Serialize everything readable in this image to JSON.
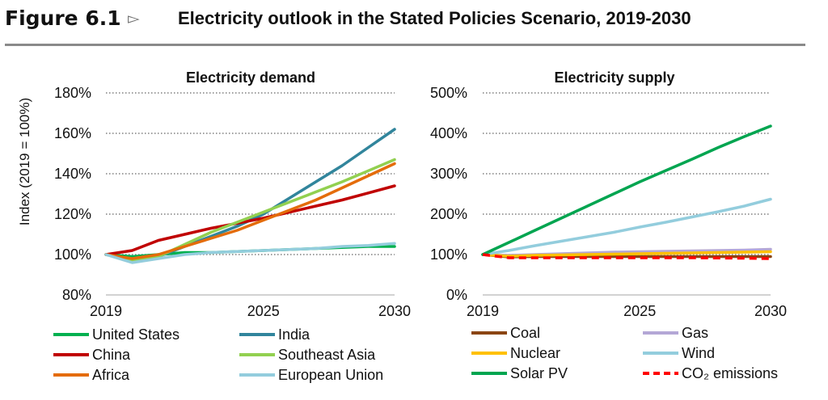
{
  "figure": {
    "number": "Figure 6.1",
    "arrow": "▻",
    "title": "Electricity outlook in the Stated Policies Scenario, 2019-2030"
  },
  "chart_data": [
    {
      "type": "line",
      "title": "Electricity demand",
      "ylabel": "Index (2019 = 100%)",
      "xlabel": "",
      "x": [
        2019,
        2020,
        2021,
        2022,
        2023,
        2024,
        2025,
        2026,
        2027,
        2028,
        2029,
        2030
      ],
      "xticks": [
        2019,
        2025,
        2030
      ],
      "ylim": [
        0.8,
        1.8
      ],
      "yticks": [
        0.8,
        1.0,
        1.2,
        1.4,
        1.6,
        1.8
      ],
      "ytick_labels": [
        "80%",
        "100%",
        "120%",
        "140%",
        "160%",
        "180%"
      ],
      "grid": "dotted horizontal",
      "series": [
        {
          "name": "United States",
          "color": "#00b050",
          "values": [
            1.0,
            0.99,
            1.0,
            1.01,
            1.01,
            1.015,
            1.02,
            1.025,
            1.03,
            1.035,
            1.04,
            1.04
          ]
        },
        {
          "name": "India",
          "color": "#31859c",
          "values": [
            1.0,
            0.97,
            0.99,
            1.04,
            1.09,
            1.14,
            1.2,
            1.28,
            1.36,
            1.44,
            1.53,
            1.62
          ]
        },
        {
          "name": "China",
          "color": "#c00000",
          "values": [
            1.0,
            1.02,
            1.07,
            1.1,
            1.13,
            1.155,
            1.18,
            1.21,
            1.24,
            1.27,
            1.305,
            1.34
          ]
        },
        {
          "name": "Southeast Asia",
          "color": "#92d050",
          "values": [
            1.0,
            0.97,
            0.99,
            1.05,
            1.11,
            1.16,
            1.21,
            1.26,
            1.31,
            1.36,
            1.415,
            1.47
          ]
        },
        {
          "name": "Africa",
          "color": "#e46c0a",
          "values": [
            1.0,
            0.98,
            1.0,
            1.04,
            1.08,
            1.12,
            1.17,
            1.22,
            1.27,
            1.33,
            1.39,
            1.45
          ]
        },
        {
          "name": "European Union",
          "color": "#93cddd",
          "values": [
            1.0,
            0.96,
            0.98,
            1.0,
            1.01,
            1.015,
            1.02,
            1.025,
            1.03,
            1.04,
            1.045,
            1.055
          ]
        }
      ]
    },
    {
      "type": "line",
      "title": "Electricity supply",
      "xlabel": "",
      "ylabel": "",
      "x": [
        2019,
        2020,
        2021,
        2022,
        2023,
        2024,
        2025,
        2026,
        2027,
        2028,
        2029,
        2030
      ],
      "xticks": [
        2019,
        2025,
        2030
      ],
      "ylim": [
        0,
        5
      ],
      "yticks": [
        0,
        1,
        2,
        3,
        4,
        5
      ],
      "ytick_labels": [
        "0%",
        "100%",
        "200%",
        "300%",
        "400%",
        "500%"
      ],
      "grid": "dotted horizontal",
      "series": [
        {
          "name": "Coal",
          "color": "#8b4513",
          "dash": "solid",
          "values": [
            1.0,
            0.94,
            0.95,
            0.95,
            0.95,
            0.95,
            0.95,
            0.95,
            0.95,
            0.95,
            0.95,
            0.95
          ]
        },
        {
          "name": "Gas",
          "color": "#b4a7d6",
          "dash": "solid",
          "values": [
            1.0,
            0.98,
            1.0,
            1.02,
            1.04,
            1.06,
            1.07,
            1.08,
            1.09,
            1.1,
            1.11,
            1.13
          ]
        },
        {
          "name": "Nuclear",
          "color": "#ffc000",
          "dash": "solid",
          "values": [
            1.0,
            0.96,
            0.98,
            0.99,
            1.0,
            1.01,
            1.02,
            1.03,
            1.04,
            1.05,
            1.06,
            1.07
          ]
        },
        {
          "name": "Wind",
          "color": "#93cddd",
          "dash": "solid",
          "values": [
            1.0,
            1.1,
            1.22,
            1.33,
            1.44,
            1.55,
            1.68,
            1.8,
            1.93,
            2.06,
            2.2,
            2.37
          ]
        },
        {
          "name": "Solar PV",
          "color": "#00a550",
          "dash": "solid",
          "values": [
            1.0,
            1.3,
            1.6,
            1.9,
            2.2,
            2.5,
            2.8,
            3.08,
            3.36,
            3.65,
            3.92,
            4.18
          ]
        },
        {
          "name": "CO₂ emissions",
          "color": "#ff0000",
          "dash": "dashed",
          "values": [
            1.0,
            0.92,
            0.92,
            0.92,
            0.92,
            0.92,
            0.92,
            0.92,
            0.92,
            0.915,
            0.91,
            0.9
          ]
        }
      ]
    }
  ]
}
